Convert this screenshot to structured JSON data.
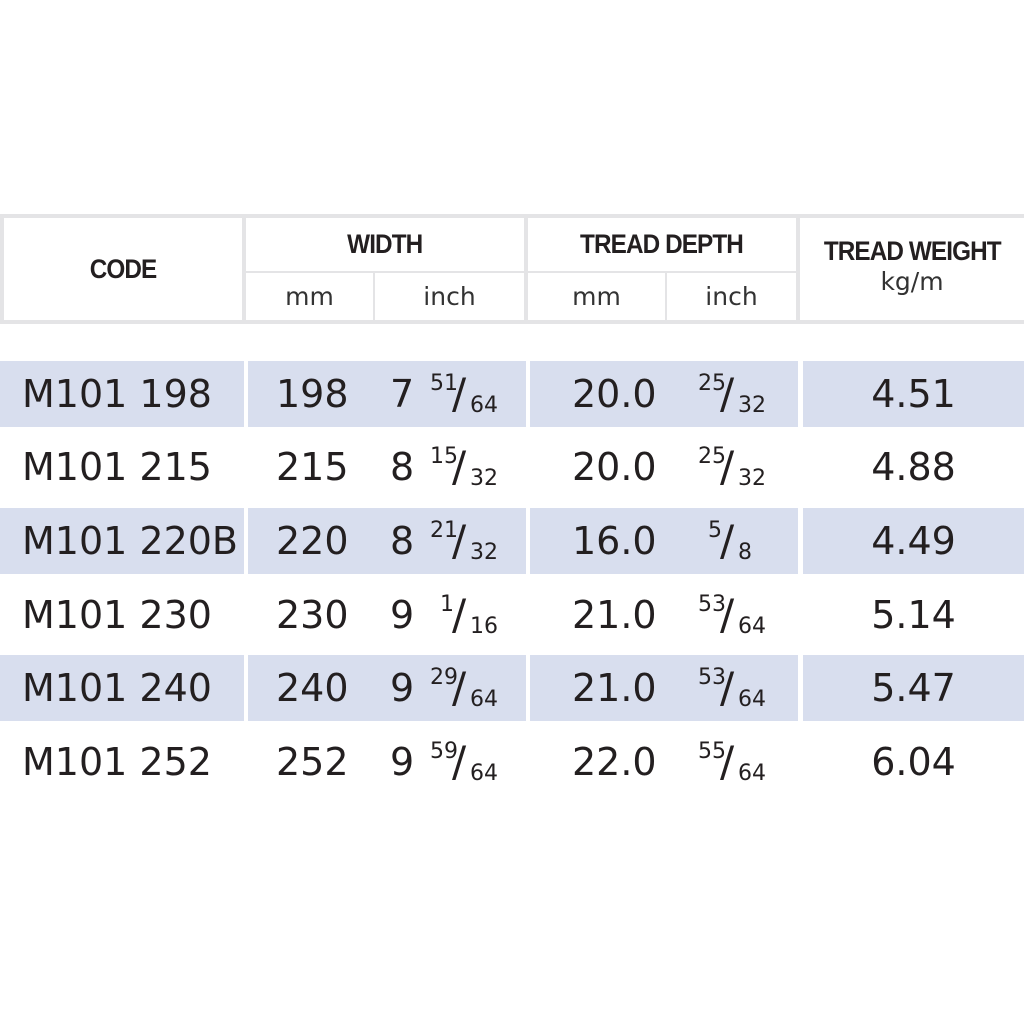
{
  "header": {
    "code": "CODE",
    "width": "WIDTH",
    "tread_depth": "TREAD DEPTH",
    "tread_weight": "TREAD WEIGHT",
    "unit_mm": "mm",
    "unit_inch": "inch",
    "unit_kgm": "kg/m"
  },
  "shade_color": "#d8deee",
  "rows": [
    {
      "code": "M101 198",
      "width_mm": "198",
      "width_whole": "7",
      "width_num": "51",
      "width_den": "64",
      "depth_mm": "20.0",
      "depth_num": "25",
      "depth_den": "32",
      "weight": "4.51"
    },
    {
      "code": "M101 215",
      "width_mm": "215",
      "width_whole": "8",
      "width_num": "15",
      "width_den": "32",
      "depth_mm": "20.0",
      "depth_num": "25",
      "depth_den": "32",
      "weight": "4.88"
    },
    {
      "code": "M101 220B",
      "width_mm": "220",
      "width_whole": "8",
      "width_num": "21",
      "width_den": "32",
      "depth_mm": "16.0",
      "depth_num": "5",
      "depth_den": "8",
      "weight": "4.49"
    },
    {
      "code": "M101 230",
      "width_mm": "230",
      "width_whole": "9",
      "width_num": "1",
      "width_den": "16",
      "depth_mm": "21.0",
      "depth_num": "53",
      "depth_den": "64",
      "weight": "5.14"
    },
    {
      "code": "M101 240",
      "width_mm": "240",
      "width_whole": "9",
      "width_num": "29",
      "width_den": "64",
      "depth_mm": "21.0",
      "depth_num": "53",
      "depth_den": "64",
      "weight": "5.47"
    },
    {
      "code": "M101 252",
      "width_mm": "252",
      "width_whole": "9",
      "width_num": "59",
      "width_den": "64",
      "depth_mm": "22.0",
      "depth_num": "55",
      "depth_den": "64",
      "weight": "6.04"
    }
  ]
}
